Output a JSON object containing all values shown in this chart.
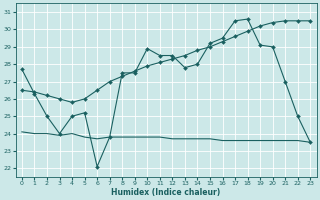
{
  "title": "",
  "xlabel": "Humidex (Indice chaleur)",
  "background_color": "#cce8e8",
  "grid_color": "#ffffff",
  "line_color": "#1a6060",
  "xlim": [
    -0.5,
    23.5
  ],
  "ylim": [
    21.5,
    31.5
  ],
  "xticks": [
    0,
    1,
    2,
    3,
    4,
    5,
    6,
    7,
    8,
    9,
    10,
    11,
    12,
    13,
    14,
    15,
    16,
    17,
    18,
    19,
    20,
    21,
    22,
    23
  ],
  "yticks": [
    22,
    23,
    24,
    25,
    26,
    27,
    28,
    29,
    30,
    31
  ],
  "line1_x": [
    0,
    1,
    2,
    3,
    4,
    5,
    6,
    7,
    8,
    9,
    10,
    11,
    12,
    13,
    14,
    15,
    16,
    17,
    18,
    19,
    20,
    21,
    22,
    23
  ],
  "line1_y": [
    27.7,
    26.3,
    25.0,
    24.0,
    25.0,
    25.2,
    22.1,
    23.8,
    27.5,
    27.5,
    28.9,
    28.5,
    28.5,
    27.8,
    28.0,
    29.2,
    29.5,
    30.5,
    30.6,
    29.1,
    29.0,
    27.0,
    25.0,
    23.5
  ],
  "line2_x": [
    0,
    1,
    2,
    3,
    4,
    5,
    6,
    7,
    8,
    9,
    10,
    11,
    12,
    13,
    14,
    15,
    16,
    17,
    18,
    19,
    20,
    21,
    22,
    23
  ],
  "line2_y": [
    26.5,
    26.4,
    26.2,
    26.0,
    25.8,
    26.0,
    26.5,
    27.0,
    27.3,
    27.6,
    27.9,
    28.1,
    28.3,
    28.5,
    28.8,
    29.0,
    29.3,
    29.6,
    29.9,
    30.2,
    30.4,
    30.5,
    30.5,
    30.5
  ],
  "line3_x": [
    0,
    1,
    2,
    3,
    4,
    5,
    6,
    7,
    8,
    9,
    10,
    11,
    12,
    13,
    14,
    15,
    16,
    17,
    18,
    19,
    20,
    21,
    22,
    23
  ],
  "line3_y": [
    24.1,
    24.0,
    24.0,
    23.9,
    24.0,
    23.8,
    23.7,
    23.8,
    23.8,
    23.8,
    23.8,
    23.8,
    23.7,
    23.7,
    23.7,
    23.7,
    23.6,
    23.6,
    23.6,
    23.6,
    23.6,
    23.6,
    23.6,
    23.5
  ]
}
